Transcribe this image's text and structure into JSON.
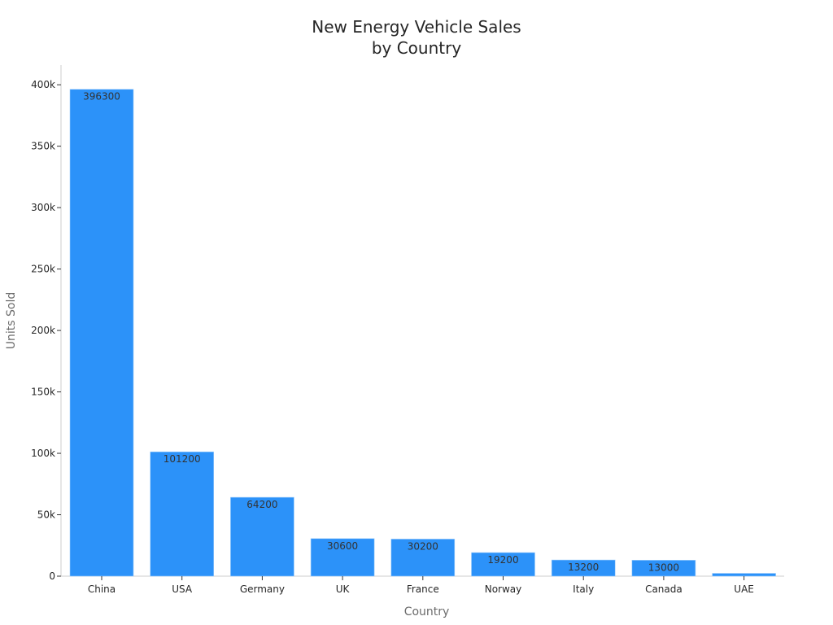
{
  "chart_data": {
    "type": "bar",
    "title_line1": "New Energy Vehicle Sales",
    "title_line2": "by Country",
    "xlabel": "Country",
    "ylabel": "Units Sold",
    "categories": [
      "China",
      "USA",
      "Germany",
      "UK",
      "France",
      "Norway",
      "Italy",
      "Canada",
      "UAE"
    ],
    "values": [
      396300,
      101200,
      64200,
      30600,
      30200,
      19200,
      13200,
      13000,
      2300
    ],
    "data_labels": [
      "396300",
      "101200",
      "64200",
      "30600",
      "30200",
      "19200",
      "13200",
      "13000",
      ""
    ],
    "ylim": [
      0,
      416000
    ],
    "y_ticks": [
      0,
      50000,
      100000,
      150000,
      200000,
      250000,
      300000,
      350000,
      400000
    ],
    "y_tick_labels": [
      "0",
      "50k",
      "100k",
      "150k",
      "200k",
      "250k",
      "300k",
      "350k",
      "400k"
    ],
    "grid": false,
    "legend": "none",
    "bar_color": "#2c92f9",
    "axis_color": "#cccccc"
  }
}
